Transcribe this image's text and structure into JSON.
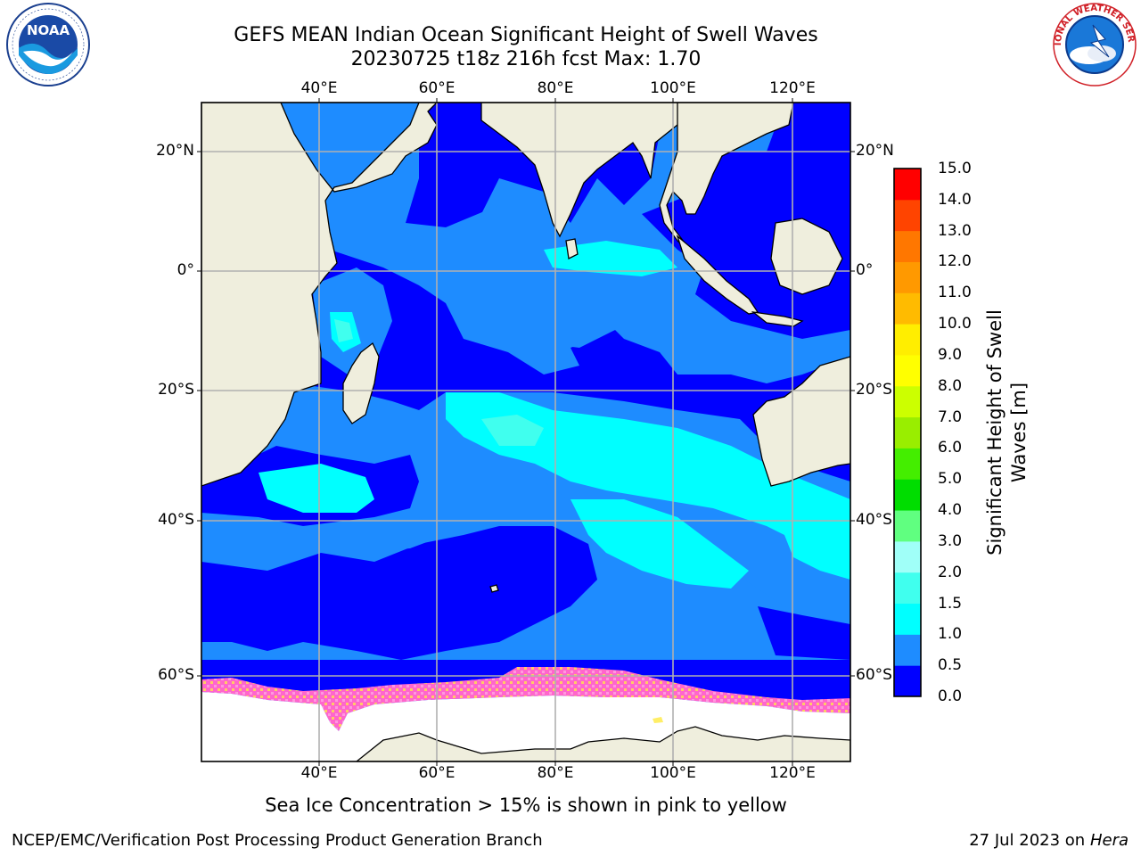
{
  "title": {
    "line1": "GEFS MEAN Indian Ocean Significant Height of Swell Waves",
    "line2": "20230725 t18z 216h fcst   Max: 1.70"
  },
  "logos": {
    "left": "NOAA",
    "right": "NATIONAL WEATHER SERVICE"
  },
  "axes": {
    "lon_labels": [
      "40°E",
      "60°E",
      "80°E",
      "100°E",
      "120°E"
    ],
    "lat_labels": [
      "20°N",
      "0°",
      "20°S",
      "40°S",
      "60°S"
    ]
  },
  "colorbar": {
    "label_line1": "Significant Height of Swell",
    "label_line2": "Waves [m]",
    "ticks": [
      "15.0",
      "14.0",
      "13.0",
      "12.0",
      "11.0",
      "10.0",
      "9.0",
      "8.0",
      "7.0",
      "6.0",
      "5.0",
      "4.0",
      "3.0",
      "2.0",
      "1.5",
      "1.0",
      "0.5",
      "0.0"
    ],
    "colors_bottom_to_top": [
      "#0000ff",
      "#1e8cff",
      "#00ffff",
      "#40ffee",
      "#a0fff8",
      "#60ff80",
      "#00dd00",
      "#44ee00",
      "#99ee00",
      "#ccff00",
      "#ffff00",
      "#ffee00",
      "#ffbb00",
      "#ff9900",
      "#ff7700",
      "#ff4400",
      "#ff0000"
    ]
  },
  "footnote": "Sea Ice Concentration > 15% is shown in pink to yellow",
  "credits": {
    "left": "NCEP/EMC/Verification Post Processing Product Generation Branch",
    "right_prefix": "27 Jul 2023 on ",
    "right_host": "Hera"
  },
  "colors": {
    "land": "#efeedd",
    "swell_0_05": "#0000ff",
    "swell_05_10": "#1e8cff",
    "swell_10_15": "#00ffff",
    "swell_15_20": "#40ffee",
    "ice": "#ff66cc",
    "grid": "#b0b0b0"
  }
}
